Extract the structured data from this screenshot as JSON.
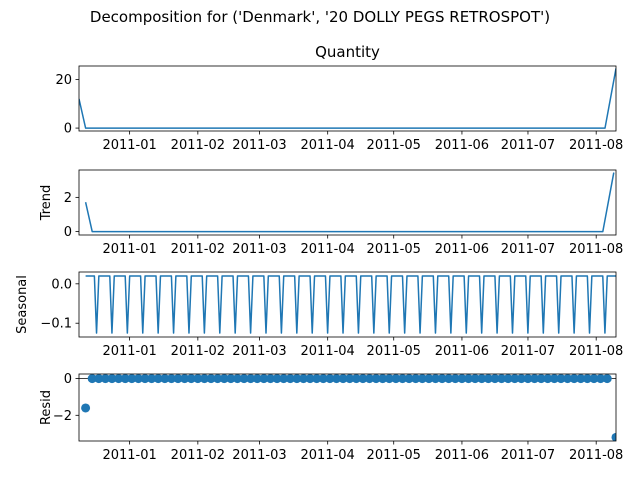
{
  "figure": {
    "suptitle": "Decomposition for ('Denmark', '20 DOLLY PEGS RETROSPOT')",
    "line_color": "#1f77b4"
  },
  "chart_data": [
    {
      "type": "line",
      "title": "Quantity",
      "xlabel": "",
      "ylabel": "",
      "xlim": [
        "2010-12-09",
        "2011-08-10"
      ],
      "ylim": [
        -1.2,
        25.5
      ],
      "yticks": [
        0,
        20
      ],
      "xticks": [
        "2011-01",
        "2011-02",
        "2011-03",
        "2011-04",
        "2011-05",
        "2011-06",
        "2011-07",
        "2011-08"
      ],
      "series": [
        {
          "x": [
            "2010-12-09",
            "2010-12-12",
            "2011-08-05",
            "2011-08-10"
          ],
          "y": [
            12,
            0,
            0,
            24.5
          ]
        }
      ]
    },
    {
      "type": "line",
      "title": "",
      "xlabel": "",
      "ylabel": "Trend",
      "xlim": [
        "2010-12-09",
        "2011-08-10"
      ],
      "ylim": [
        -0.2,
        3.6
      ],
      "yticks": [
        0,
        2
      ],
      "xticks": [
        "2011-01",
        "2011-02",
        "2011-03",
        "2011-04",
        "2011-05",
        "2011-06",
        "2011-07",
        "2011-08"
      ],
      "series": [
        {
          "x": [
            "2010-12-12",
            "2010-12-15",
            "2011-08-04",
            "2011-08-09"
          ],
          "y": [
            1.72,
            0,
            0,
            3.45
          ]
        }
      ]
    },
    {
      "type": "line",
      "title": "",
      "xlabel": "",
      "ylabel": "Seasonal",
      "xlim": [
        "2010-12-09",
        "2011-08-10"
      ],
      "ylim": [
        -0.135,
        0.03
      ],
      "yticks": [
        0.0,
        -0.1
      ],
      "ytick_labels": [
        "0.0",
        "−0.1"
      ],
      "xticks": [
        "2011-01",
        "2011-02",
        "2011-03",
        "2011-04",
        "2011-05",
        "2011-06",
        "2011-07",
        "2011-08"
      ],
      "seasonal": {
        "start": "2010-12-12",
        "end": "2011-08-09",
        "period_days": 7,
        "high": 0.02,
        "low": -0.125
      }
    },
    {
      "type": "scatter",
      "title": "",
      "xlabel": "",
      "ylabel": "Resid",
      "xlim": [
        "2010-12-09",
        "2011-08-10"
      ],
      "ylim": [
        -3.4,
        0.25
      ],
      "yticks": [
        0,
        -2
      ],
      "ytick_labels": [
        "0",
        "−2"
      ],
      "xticks": [
        "2011-01",
        "2011-02",
        "2011-03",
        "2011-04",
        "2011-05",
        "2011-06",
        "2011-07",
        "2011-08"
      ],
      "zero_line": true,
      "resid": {
        "start": "2010-12-12",
        "end": "2011-08-09",
        "step_days": 3,
        "value": 0,
        "outliers": [
          {
            "x": "2010-12-12",
            "y": -1.6
          },
          {
            "x": "2011-08-10",
            "y": -3.2
          }
        ]
      }
    }
  ]
}
